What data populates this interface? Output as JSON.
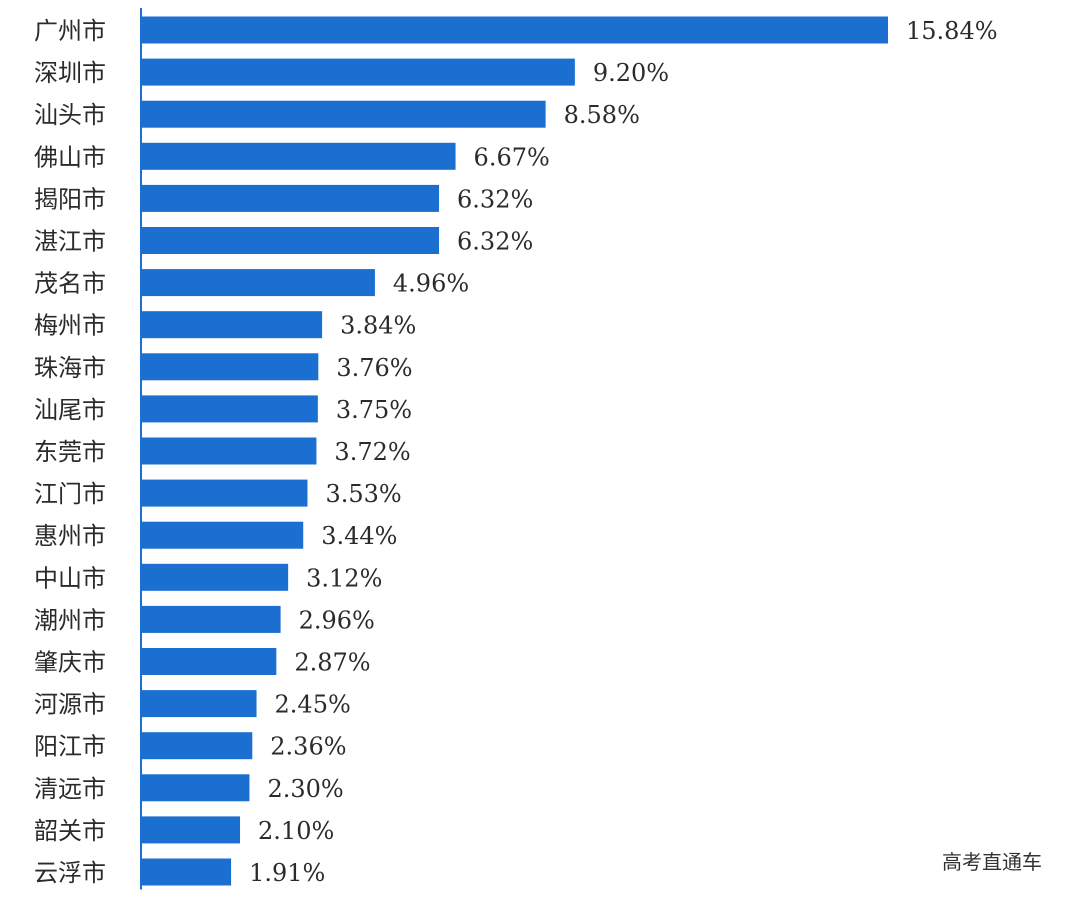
{
  "chart_data": {
    "type": "bar",
    "orientation": "horizontal",
    "title": "",
    "xlabel": "",
    "ylabel": "",
    "unit": "%",
    "xlim": [
      0,
      15.84
    ],
    "grid": false,
    "legend": "none",
    "bar_color": "#1a6fd1",
    "categories": [
      "广州市",
      "深圳市",
      "汕头市",
      "佛山市",
      "揭阳市",
      "湛江市",
      "茂名市",
      "梅州市",
      "珠海市",
      "汕尾市",
      "东莞市",
      "江门市",
      "惠州市",
      "中山市",
      "潮州市",
      "肇庆市",
      "河源市",
      "阳江市",
      "清远市",
      "韶关市",
      "云浮市"
    ],
    "values": [
      15.84,
      9.2,
      8.58,
      6.67,
      6.32,
      6.32,
      4.96,
      3.84,
      3.76,
      3.75,
      3.72,
      3.53,
      3.44,
      3.12,
      2.96,
      2.87,
      2.45,
      2.36,
      2.3,
      2.1,
      1.91
    ],
    "value_labels": [
      "15.84%",
      "9.20%",
      "8.58%",
      "6.67%",
      "6.32%",
      "6.32%",
      "4.96%",
      "3.84%",
      "3.76%",
      "3.75%",
      "3.72%",
      "3.53%",
      "3.44%",
      "3.12%",
      "2.96%",
      "2.87%",
      "2.45%",
      "2.36%",
      "2.30%",
      "2.10%",
      "1.91%"
    ]
  },
  "watermark": "高考直通车"
}
